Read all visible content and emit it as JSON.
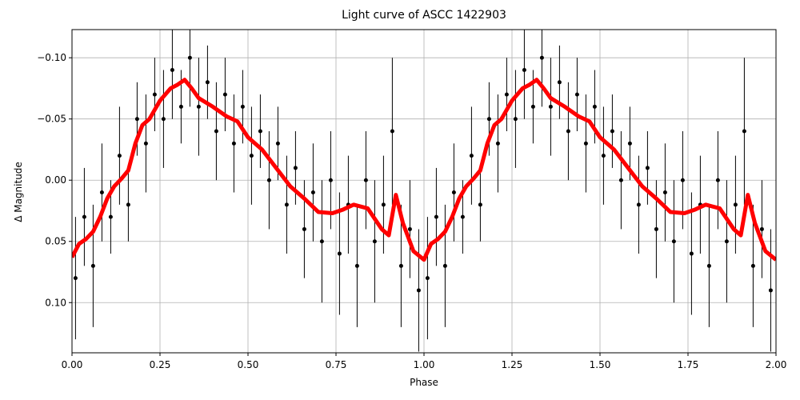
{
  "chart_data": {
    "type": "scatter",
    "title": "Light curve of ASCC 1422903",
    "xlabel": "Phase",
    "ylabel": "Δ Magnitude",
    "xlim": [
      0,
      2
    ],
    "ylim": [
      0.141,
      -0.123
    ],
    "xticks": [
      {
        "value": 0,
        "label": "0.00"
      },
      {
        "value": 0.25,
        "label": "0.25"
      },
      {
        "value": 0.5,
        "label": "0.50"
      },
      {
        "value": 0.75,
        "label": "0.75"
      },
      {
        "value": 1,
        "label": "1.00"
      },
      {
        "value": 1.25,
        "label": "1.25"
      },
      {
        "value": 1.5,
        "label": "1.50"
      },
      {
        "value": 1.75,
        "label": "1.75"
      },
      {
        "value": 2,
        "label": "2.00"
      }
    ],
    "yticks": [
      {
        "value": -0.1,
        "label": "−0.10"
      },
      {
        "value": -0.05,
        "label": "−0.05"
      },
      {
        "value": 0,
        "label": "0.00"
      },
      {
        "value": 0.05,
        "label": "0.05"
      },
      {
        "value": 0.1,
        "label": "0.10"
      }
    ],
    "grid": true,
    "series": [
      {
        "type": "errorbar",
        "color": "#000000",
        "x": [
          0.01,
          0.035,
          0.06,
          0.085,
          0.11,
          0.135,
          0.16,
          0.185,
          0.21,
          0.235,
          0.26,
          0.285,
          0.31,
          0.335,
          0.36,
          0.385,
          0.41,
          0.435,
          0.46,
          0.485,
          0.51,
          0.535,
          0.56,
          0.585,
          0.61,
          0.635,
          0.66,
          0.685,
          0.71,
          0.735,
          0.76,
          0.785,
          0.81,
          0.835,
          0.86,
          0.885,
          0.91,
          0.935,
          0.96,
          0.985,
          1.01,
          1.035,
          1.06,
          1.085,
          1.11,
          1.135,
          1.16,
          1.185,
          1.21,
          1.235,
          1.26,
          1.285,
          1.31,
          1.335,
          1.36,
          1.385,
          1.41,
          1.435,
          1.46,
          1.485,
          1.51,
          1.535,
          1.56,
          1.585,
          1.61,
          1.635,
          1.66,
          1.685,
          1.71,
          1.735,
          1.76,
          1.785,
          1.81,
          1.835,
          1.86,
          1.885,
          1.91,
          1.935,
          1.96,
          1.985
        ],
        "values": [
          0.08,
          0.03,
          0.07,
          0.01,
          0.03,
          -0.02,
          0.02,
          -0.05,
          -0.03,
          -0.07,
          -0.05,
          -0.09,
          -0.06,
          -0.1,
          -0.06,
          -0.08,
          -0.04,
          -0.07,
          -0.03,
          -0.06,
          -0.02,
          -0.04,
          0,
          -0.03,
          0.02,
          -0.01,
          0.04,
          0.01,
          0.05,
          0,
          0.06,
          0.02,
          0.07,
          0,
          0.05,
          0.02,
          -0.04,
          0.07,
          0.04,
          0.09,
          0.08,
          0.03,
          0.07,
          0.01,
          0.03,
          -0.02,
          0.02,
          -0.05,
          -0.03,
          -0.07,
          -0.05,
          -0.09,
          -0.06,
          -0.1,
          -0.06,
          -0.08,
          -0.04,
          -0.07,
          -0.03,
          -0.06,
          -0.02,
          -0.04,
          0,
          -0.03,
          0.02,
          -0.01,
          0.04,
          0.01,
          0.05,
          0,
          0.06,
          0.02,
          0.07,
          0,
          0.05,
          0.02,
          -0.04,
          0.07,
          0.04,
          0.09
        ],
        "errors": [
          0.05,
          0.04,
          0.05,
          0.04,
          0.03,
          0.04,
          0.03,
          0.03,
          0.04,
          0.03,
          0.04,
          0.04,
          0.03,
          0.04,
          0.04,
          0.03,
          0.04,
          0.03,
          0.04,
          0.03,
          0.04,
          0.03,
          0.04,
          0.03,
          0.04,
          0.03,
          0.04,
          0.04,
          0.05,
          0.04,
          0.05,
          0.04,
          0.05,
          0.04,
          0.05,
          0.04,
          0.06,
          0.05,
          0.04,
          0.05,
          0.05,
          0.04,
          0.05,
          0.04,
          0.03,
          0.04,
          0.03,
          0.03,
          0.04,
          0.03,
          0.04,
          0.04,
          0.03,
          0.04,
          0.04,
          0.03,
          0.04,
          0.03,
          0.04,
          0.03,
          0.04,
          0.03,
          0.04,
          0.03,
          0.04,
          0.03,
          0.04,
          0.04,
          0.05,
          0.04,
          0.05,
          0.04,
          0.05,
          0.04,
          0.05,
          0.04,
          0.06,
          0.05,
          0.04,
          0.05
        ]
      },
      {
        "type": "line",
        "color": "#ff0000",
        "x": [
          0,
          0.02,
          0.04,
          0.06,
          0.08,
          0.1,
          0.12,
          0.14,
          0.16,
          0.18,
          0.2,
          0.22,
          0.25,
          0.28,
          0.3,
          0.32,
          0.34,
          0.36,
          0.4,
          0.44,
          0.47,
          0.5,
          0.54,
          0.58,
          0.62,
          0.66,
          0.7,
          0.74,
          0.77,
          0.8,
          0.84,
          0.88,
          0.9,
          0.92,
          0.94,
          0.97,
          1,
          1.02,
          1.04,
          1.06,
          1.08,
          1.1,
          1.12,
          1.14,
          1.16,
          1.18,
          1.2,
          1.22,
          1.25,
          1.28,
          1.3,
          1.32,
          1.34,
          1.36,
          1.4,
          1.44,
          1.47,
          1.5,
          1.54,
          1.58,
          1.62,
          1.66,
          1.7,
          1.74,
          1.77,
          1.8,
          1.84,
          1.88,
          1.9,
          1.92,
          1.94,
          1.97,
          2
        ],
        "values": [
          0.063,
          0.052,
          0.048,
          0.042,
          0.03,
          0.015,
          0.005,
          -0.001,
          -0.008,
          -0.03,
          -0.045,
          -0.05,
          -0.065,
          -0.075,
          -0.078,
          -0.082,
          -0.075,
          -0.067,
          -0.06,
          -0.052,
          -0.048,
          -0.035,
          -0.025,
          -0.01,
          0.005,
          0.015,
          0.026,
          0.027,
          0.024,
          0.02,
          0.023,
          0.04,
          0.045,
          0.012,
          0.035,
          0.058,
          0.065,
          0.052,
          0.048,
          0.042,
          0.03,
          0.015,
          0.005,
          -0.001,
          -0.008,
          -0.03,
          -0.045,
          -0.05,
          -0.065,
          -0.075,
          -0.078,
          -0.082,
          -0.075,
          -0.067,
          -0.06,
          -0.052,
          -0.048,
          -0.035,
          -0.025,
          -0.01,
          0.005,
          0.015,
          0.026,
          0.027,
          0.024,
          0.02,
          0.023,
          0.04,
          0.045,
          0.012,
          0.035,
          0.058,
          0.065
        ]
      }
    ]
  }
}
